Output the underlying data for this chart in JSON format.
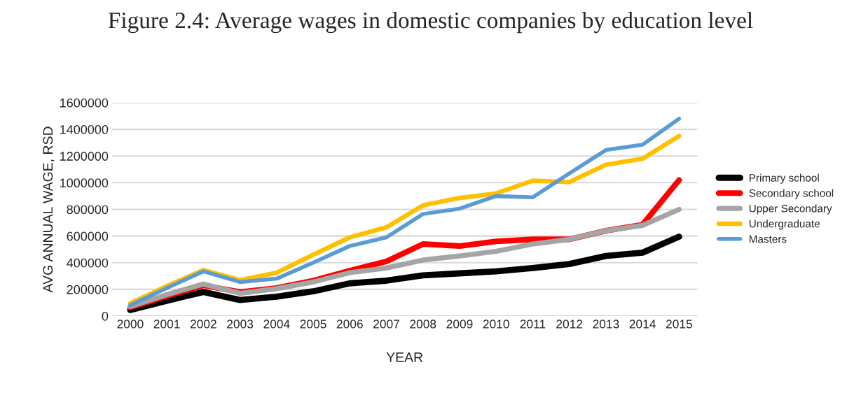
{
  "chart_data": {
    "type": "line",
    "title": "Figure 2.4: Average wages in domestic companies by education level",
    "xlabel": "YEAR",
    "ylabel": "AVG ANNUAL WAGE, RSD",
    "categories": [
      "2000",
      "2001",
      "2002",
      "2003",
      "2004",
      "2005",
      "2006",
      "2007",
      "2008",
      "2009",
      "2010",
      "2011",
      "2012",
      "2013",
      "2014",
      "2015"
    ],
    "series": [
      {
        "name": "Primary school",
        "color": "#000000",
        "values": [
          45000,
          115000,
          180000,
          120000,
          145000,
          185000,
          245000,
          265000,
          305000,
          320000,
          335000,
          360000,
          390000,
          450000,
          475000,
          595000
        ]
      },
      {
        "name": "Secondary school",
        "color": "#ff0000",
        "values": [
          65000,
          150000,
          230000,
          180000,
          210000,
          265000,
          340000,
          410000,
          540000,
          525000,
          560000,
          575000,
          575000,
          640000,
          685000,
          1020000
        ]
      },
      {
        "name": "Upper Secondary",
        "color": "#a5a5a5",
        "values": [
          70000,
          160000,
          240000,
          170000,
          205000,
          255000,
          325000,
          360000,
          420000,
          450000,
          485000,
          540000,
          575000,
          640000,
          680000,
          800000
        ]
      },
      {
        "name": "Undergraduate",
        "color": "#ffc000",
        "values": [
          95000,
          225000,
          345000,
          270000,
          325000,
          460000,
          590000,
          665000,
          830000,
          885000,
          920000,
          1015000,
          1005000,
          1135000,
          1180000,
          1350000
        ]
      },
      {
        "name": "Masters",
        "color": "#5b9bd5",
        "values": [
          80000,
          210000,
          335000,
          255000,
          280000,
          400000,
          525000,
          590000,
          765000,
          805000,
          900000,
          890000,
          1070000,
          1245000,
          1285000,
          1480000
        ]
      }
    ],
    "ylim": [
      0,
      1600000
    ],
    "yticks": [
      0,
      200000,
      400000,
      600000,
      800000,
      1000000,
      1200000,
      1400000,
      1600000
    ],
    "grid": "y",
    "legend": "right",
    "line_style": "solid",
    "marker": "none"
  }
}
